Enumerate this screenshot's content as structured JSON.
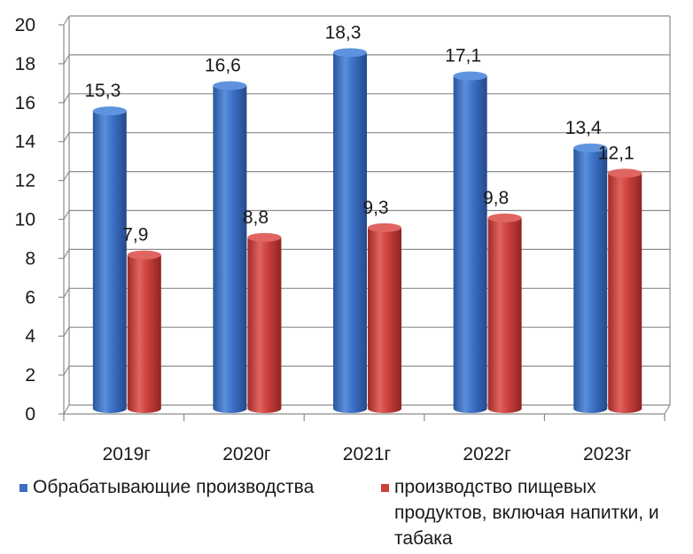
{
  "chart_data": {
    "type": "bar",
    "categories": [
      "2019г",
      "2020г",
      "2021г",
      "2022г",
      "2023г"
    ],
    "series": [
      {
        "name": "Обрабатывающие производства",
        "values": [
          15.3,
          16.6,
          18.3,
          17.1,
          13.4
        ],
        "labels": [
          "15,3",
          "16,6",
          "18,3",
          "17,1",
          "13,4"
        ],
        "color": "#3b6fc4"
      },
      {
        "name": "производство пищевых продуктов, включая напитки, и табака",
        "values": [
          7.9,
          8.8,
          9.3,
          9.8,
          12.1
        ],
        "labels": [
          "7,9",
          "8,8",
          "9,3",
          "9,8",
          "12,1"
        ],
        "color": "#c9403c"
      }
    ],
    "yticks": [
      "0",
      "2",
      "4",
      "6",
      "8",
      "10",
      "12",
      "14",
      "16",
      "18",
      "20"
    ],
    "ylim": [
      0,
      20
    ],
    "grid": true,
    "legend_position": "bottom",
    "style": "3d-cylinder"
  },
  "legend": {
    "series1": "Обрабатывающие производства",
    "series2_line1": "производство пищевых",
    "series2_line2": "продуктов, включая напитки, и",
    "series2_line3": "табака"
  }
}
